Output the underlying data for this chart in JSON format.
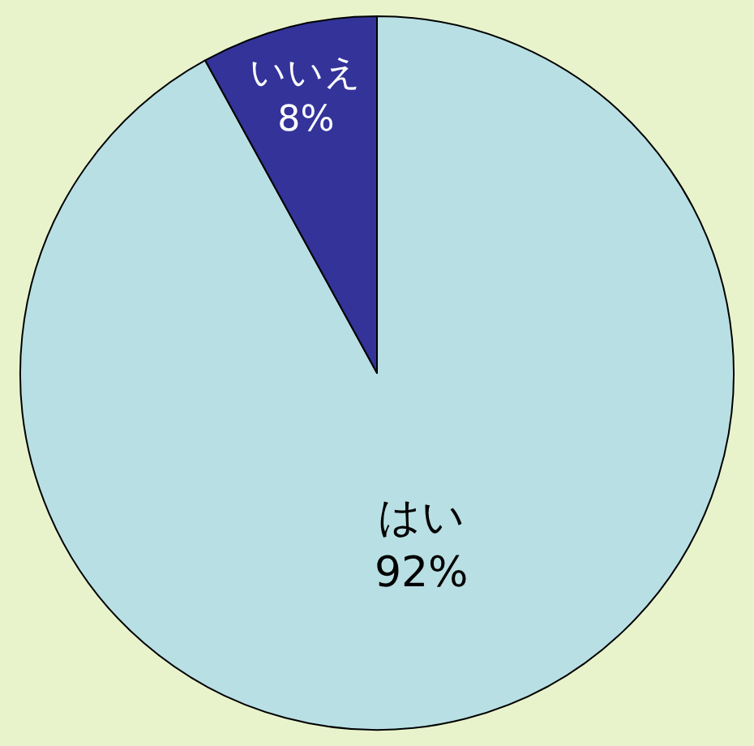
{
  "chart_data": {
    "type": "pie",
    "categories": [
      "はい",
      "いいえ"
    ],
    "values": [
      92,
      8
    ],
    "value_labels": [
      "92%",
      "8%"
    ],
    "colors": [
      "#b8dfe4",
      "#33339a"
    ],
    "legend": false
  }
}
